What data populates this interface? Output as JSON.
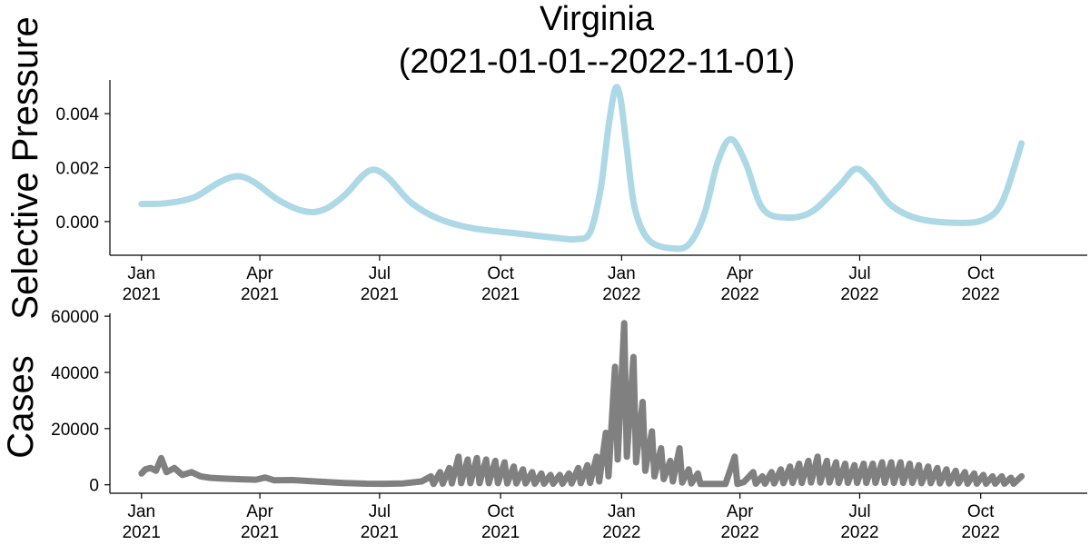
{
  "chart_data": [
    {
      "type": "line",
      "title_line1": "Virginia",
      "title_line2": "(2021-01-01--2022-11-01)",
      "ylabel": "Selective Pressure",
      "xlim": [
        "2020-12-08",
        "2022-12-21"
      ],
      "ylim": [
        -0.00125,
        0.00525
      ],
      "x_ticks": [
        {
          "date": "2021-01-01",
          "month": "Jan",
          "year": "2021"
        },
        {
          "date": "2021-04-01",
          "month": "Apr",
          "year": "2021"
        },
        {
          "date": "2021-07-01",
          "month": "Jul",
          "year": "2021"
        },
        {
          "date": "2021-10-01",
          "month": "Oct",
          "year": "2021"
        },
        {
          "date": "2022-01-01",
          "month": "Jan",
          "year": "2022"
        },
        {
          "date": "2022-04-01",
          "month": "Apr",
          "year": "2022"
        },
        {
          "date": "2022-07-01",
          "month": "Jul",
          "year": "2022"
        },
        {
          "date": "2022-10-01",
          "month": "Oct",
          "year": "2022"
        }
      ],
      "y_ticks": [
        {
          "value": 0.0,
          "label": "0.000"
        },
        {
          "value": 0.002,
          "label": "0.002"
        },
        {
          "value": 0.004,
          "label": "0.004"
        }
      ],
      "series": [
        {
          "color": "#add8e6",
          "points": [
            [
              "2021-01-01",
              0.00065
            ],
            [
              "2021-01-20",
              0.00068
            ],
            [
              "2021-02-10",
              0.0009
            ],
            [
              "2021-03-01",
              0.00145
            ],
            [
              "2021-03-15",
              0.00168
            ],
            [
              "2021-03-28",
              0.00145
            ],
            [
              "2021-04-15",
              0.0008
            ],
            [
              "2021-05-05",
              0.00038
            ],
            [
              "2021-05-20",
              0.00045
            ],
            [
              "2021-06-05",
              0.001
            ],
            [
              "2021-06-18",
              0.0017
            ],
            [
              "2021-06-27",
              0.00192
            ],
            [
              "2021-07-08",
              0.0016
            ],
            [
              "2021-07-25",
              0.0007
            ],
            [
              "2021-08-15",
              0.0001
            ],
            [
              "2021-09-10",
              -0.00025
            ],
            [
              "2021-10-15",
              -0.00045
            ],
            [
              "2021-11-15",
              -0.00062
            ],
            [
              "2021-11-28",
              -0.00065
            ],
            [
              "2021-12-08",
              -0.0004
            ],
            [
              "2021-12-16",
              0.0012
            ],
            [
              "2021-12-22",
              0.0035
            ],
            [
              "2021-12-27",
              0.0049
            ],
            [
              "2021-12-31",
              0.0046
            ],
            [
              "2022-01-05",
              0.0027
            ],
            [
              "2022-01-11",
              0.0005
            ],
            [
              "2022-01-22",
              -0.0007
            ],
            [
              "2022-02-10",
              -0.001
            ],
            [
              "2022-02-22",
              -0.0008
            ],
            [
              "2022-03-05",
              0.0003
            ],
            [
              "2022-03-15",
              0.0022
            ],
            [
              "2022-03-25",
              0.00305
            ],
            [
              "2022-04-05",
              0.0022
            ],
            [
              "2022-04-18",
              0.0005
            ],
            [
              "2022-05-05",
              0.00015
            ],
            [
              "2022-05-25",
              0.00035
            ],
            [
              "2022-06-15",
              0.0013
            ],
            [
              "2022-06-28",
              0.00195
            ],
            [
              "2022-07-10",
              0.0015
            ],
            [
              "2022-07-25",
              0.0006
            ],
            [
              "2022-08-15",
              0.0001
            ],
            [
              "2022-09-15",
              -5e-05
            ],
            [
              "2022-10-05",
              0.0001
            ],
            [
              "2022-10-18",
              0.0008
            ],
            [
              "2022-11-01",
              0.0029
            ]
          ]
        }
      ]
    },
    {
      "type": "line",
      "ylabel": "Cases",
      "xlim": [
        "2020-12-08",
        "2022-12-21"
      ],
      "ylim": [
        -3000,
        61000
      ],
      "x_ticks": [
        {
          "date": "2021-01-01",
          "month": "Jan",
          "year": "2021"
        },
        {
          "date": "2021-04-01",
          "month": "Apr",
          "year": "2021"
        },
        {
          "date": "2021-07-01",
          "month": "Jul",
          "year": "2021"
        },
        {
          "date": "2021-10-01",
          "month": "Oct",
          "year": "2021"
        },
        {
          "date": "2022-01-01",
          "month": "Jan",
          "year": "2022"
        },
        {
          "date": "2022-04-01",
          "month": "Apr",
          "year": "2022"
        },
        {
          "date": "2022-07-01",
          "month": "Jul",
          "year": "2022"
        },
        {
          "date": "2022-10-01",
          "month": "Oct",
          "year": "2022"
        }
      ],
      "y_ticks": [
        {
          "value": 0,
          "label": "0"
        },
        {
          "value": 20000,
          "label": "20000"
        },
        {
          "value": 40000,
          "label": "40000"
        },
        {
          "value": 60000,
          "label": "60000"
        }
      ],
      "series": [
        {
          "color": "#808080",
          "points": [
            [
              "2021-01-01",
              4000
            ],
            [
              "2021-01-04",
              5500
            ],
            [
              "2021-01-08",
              6000
            ],
            [
              "2021-01-12",
              5000
            ],
            [
              "2021-01-16",
              9500
            ],
            [
              "2021-01-20",
              4500
            ],
            [
              "2021-01-26",
              6000
            ],
            [
              "2021-02-01",
              3500
            ],
            [
              "2021-02-08",
              4500
            ],
            [
              "2021-02-15",
              3000
            ],
            [
              "2021-02-22",
              2500
            ],
            [
              "2021-03-01",
              2300
            ],
            [
              "2021-03-15",
              2000
            ],
            [
              "2021-03-29",
              1800
            ],
            [
              "2021-04-05",
              2600
            ],
            [
              "2021-04-12",
              1600
            ],
            [
              "2021-04-26",
              1700
            ],
            [
              "2021-05-10",
              1300
            ],
            [
              "2021-05-24",
              900
            ],
            [
              "2021-06-07",
              600
            ],
            [
              "2021-06-21",
              400
            ],
            [
              "2021-07-05",
              350
            ],
            [
              "2021-07-19",
              500
            ],
            [
              "2021-08-02",
              1200
            ],
            [
              "2021-08-09",
              3000
            ],
            [
              "2021-08-11",
              300
            ],
            [
              "2021-08-16",
              4500
            ],
            [
              "2021-08-18",
              400
            ],
            [
              "2021-08-23",
              6000
            ],
            [
              "2021-08-25",
              500
            ],
            [
              "2021-08-30",
              10000
            ],
            [
              "2021-09-01",
              600
            ],
            [
              "2021-09-06",
              9000
            ],
            [
              "2021-09-08",
              600
            ],
            [
              "2021-09-13",
              9500
            ],
            [
              "2021-09-15",
              600
            ],
            [
              "2021-09-20",
              9000
            ],
            [
              "2021-09-22",
              600
            ],
            [
              "2021-09-27",
              8500
            ],
            [
              "2021-09-29",
              600
            ],
            [
              "2021-10-04",
              8000
            ],
            [
              "2021-10-06",
              500
            ],
            [
              "2021-10-11",
              6500
            ],
            [
              "2021-10-13",
              500
            ],
            [
              "2021-10-18",
              5500
            ],
            [
              "2021-10-20",
              500
            ],
            [
              "2021-10-25",
              4500
            ],
            [
              "2021-10-27",
              400
            ],
            [
              "2021-11-01",
              4000
            ],
            [
              "2021-11-03",
              400
            ],
            [
              "2021-11-08",
              3500
            ],
            [
              "2021-11-10",
              400
            ],
            [
              "2021-11-15",
              3500
            ],
            [
              "2021-11-17",
              400
            ],
            [
              "2021-11-22",
              4000
            ],
            [
              "2021-11-24",
              500
            ],
            [
              "2021-11-29",
              6000
            ],
            [
              "2021-12-01",
              600
            ],
            [
              "2021-12-06",
              7000
            ],
            [
              "2021-12-08",
              700
            ],
            [
              "2021-12-13",
              10000
            ],
            [
              "2021-12-15",
              1200
            ],
            [
              "2021-12-20",
              18500
            ],
            [
              "2021-12-22",
              3000
            ],
            [
              "2021-12-27",
              42000
            ],
            [
              "2021-12-29",
              9000
            ],
            [
              "2022-01-03",
              57500
            ],
            [
              "2022-01-05",
              10000
            ],
            [
              "2022-01-10",
              45500
            ],
            [
              "2022-01-12",
              8000
            ],
            [
              "2022-01-17",
              29500
            ],
            [
              "2022-01-19",
              5000
            ],
            [
              "2022-01-24",
              19000
            ],
            [
              "2022-01-26",
              3000
            ],
            [
              "2022-01-31",
              13000
            ],
            [
              "2022-02-02",
              2000
            ],
            [
              "2022-02-07",
              8500
            ],
            [
              "2022-02-09",
              1200
            ],
            [
              "2022-02-14",
              13000
            ],
            [
              "2022-02-16",
              800
            ],
            [
              "2022-02-21",
              5500
            ],
            [
              "2022-02-23",
              500
            ],
            [
              "2022-02-28",
              4000
            ],
            [
              "2022-03-02",
              300
            ],
            [
              "2022-03-07",
              300
            ],
            [
              "2022-03-21",
              300
            ],
            [
              "2022-03-28",
              10000
            ],
            [
              "2022-03-30",
              300
            ],
            [
              "2022-04-04",
              1000
            ],
            [
              "2022-04-11",
              4500
            ],
            [
              "2022-04-13",
              400
            ],
            [
              "2022-04-18",
              3000
            ],
            [
              "2022-04-20",
              400
            ],
            [
              "2022-04-25",
              4500
            ],
            [
              "2022-04-27",
              500
            ],
            [
              "2022-05-02",
              5500
            ],
            [
              "2022-05-04",
              600
            ],
            [
              "2022-05-09",
              6500
            ],
            [
              "2022-05-11",
              700
            ],
            [
              "2022-05-16",
              7500
            ],
            [
              "2022-05-18",
              700
            ],
            [
              "2022-05-23",
              8500
            ],
            [
              "2022-05-25",
              800
            ],
            [
              "2022-05-30",
              10000
            ],
            [
              "2022-06-01",
              800
            ],
            [
              "2022-06-06",
              8500
            ],
            [
              "2022-06-08",
              800
            ],
            [
              "2022-06-13",
              8000
            ],
            [
              "2022-06-15",
              700
            ],
            [
              "2022-06-20",
              7500
            ],
            [
              "2022-06-22",
              700
            ],
            [
              "2022-06-27",
              7000
            ],
            [
              "2022-06-29",
              700
            ],
            [
              "2022-07-04",
              7500
            ],
            [
              "2022-07-06",
              700
            ],
            [
              "2022-07-11",
              7500
            ],
            [
              "2022-07-13",
              700
            ],
            [
              "2022-07-18",
              8000
            ],
            [
              "2022-07-20",
              700
            ],
            [
              "2022-07-25",
              8000
            ],
            [
              "2022-07-27",
              700
            ],
            [
              "2022-08-01",
              8000
            ],
            [
              "2022-08-03",
              700
            ],
            [
              "2022-08-08",
              7500
            ],
            [
              "2022-08-10",
              700
            ],
            [
              "2022-08-15",
              7000
            ],
            [
              "2022-08-17",
              600
            ],
            [
              "2022-08-22",
              6500
            ],
            [
              "2022-08-24",
              600
            ],
            [
              "2022-08-29",
              6000
            ],
            [
              "2022-08-31",
              500
            ],
            [
              "2022-09-05",
              5500
            ],
            [
              "2022-09-07",
              500
            ],
            [
              "2022-09-12",
              5000
            ],
            [
              "2022-09-14",
              500
            ],
            [
              "2022-09-19",
              4500
            ],
            [
              "2022-09-21",
              400
            ],
            [
              "2022-09-26",
              4000
            ],
            [
              "2022-09-28",
              400
            ],
            [
              "2022-10-03",
              3500
            ],
            [
              "2022-10-05",
              400
            ],
            [
              "2022-10-10",
              3000
            ],
            [
              "2022-10-12",
              400
            ],
            [
              "2022-10-17",
              3000
            ],
            [
              "2022-10-19",
              400
            ],
            [
              "2022-10-24",
              2500
            ],
            [
              "2022-10-26",
              400
            ],
            [
              "2022-11-01",
              3000
            ]
          ]
        }
      ]
    }
  ]
}
